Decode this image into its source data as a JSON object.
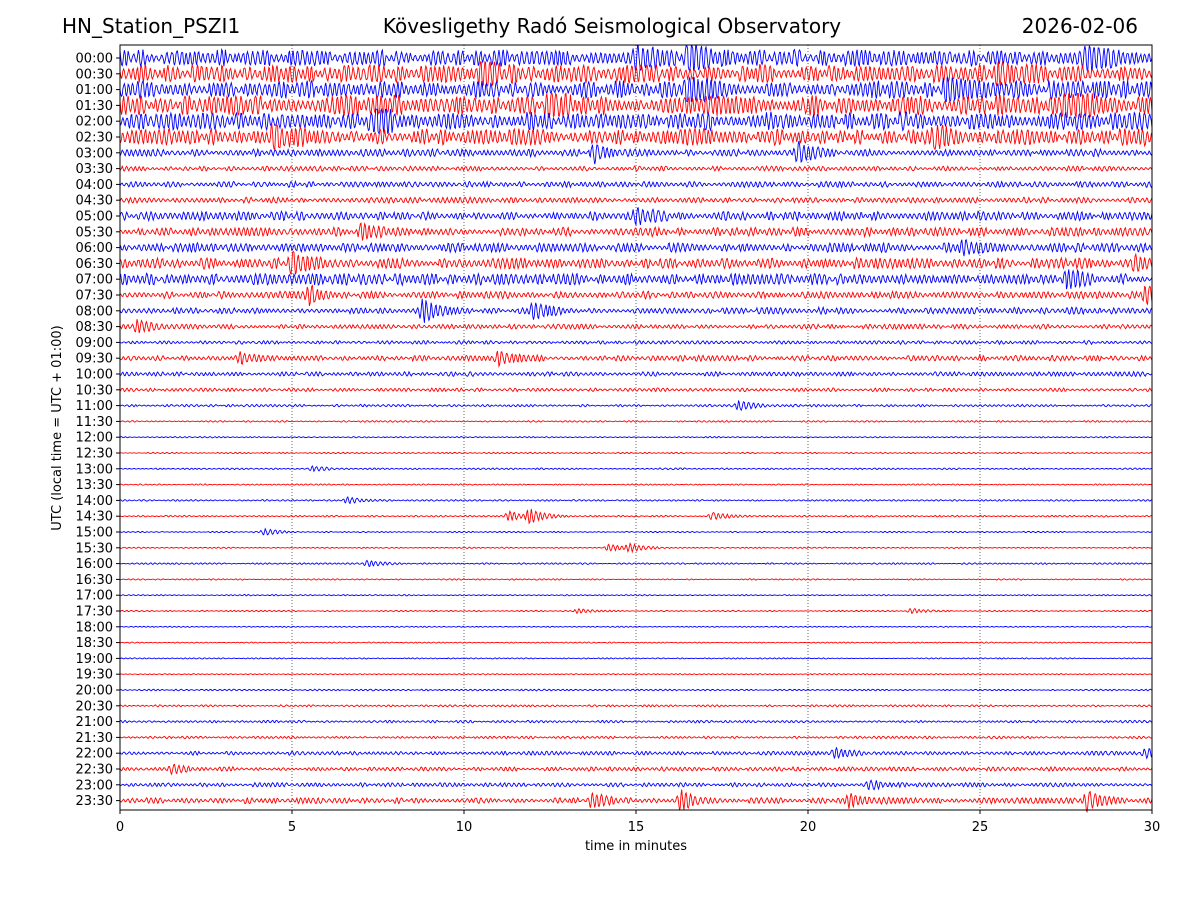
{
  "header": {
    "station": "HN_Station_PSZI1",
    "observatory": "Kövesligethy Radó Seismological Observatory",
    "date": "2026-02-06"
  },
  "chart_data": {
    "type": "line",
    "title": "Kövesligethy Radó Seismological Observatory",
    "xlabel": "time in minutes",
    "ylabel": "UTC (local time = UTC + 01:00)",
    "xlim": [
      0,
      30
    ],
    "x_ticks": [
      0,
      5,
      10,
      15,
      20,
      25,
      30
    ],
    "grid": "vertical dotted at 5-minute ticks",
    "colors": {
      "even_hour": "#0000ff",
      "half_hour": "#ff0000"
    },
    "rows": [
      {
        "label": "00:00",
        "amp": 1.0,
        "events": [
          {
            "t": 16.5,
            "a": 2.2
          },
          {
            "t": 28.1,
            "a": 1.8
          },
          {
            "t": 15.0,
            "a": 1.5
          }
        ]
      },
      {
        "label": "00:30",
        "amp": 1.1,
        "events": [
          {
            "t": 10.5,
            "a": 1.6
          },
          {
            "t": 25.5,
            "a": 1.5
          }
        ]
      },
      {
        "label": "01:00",
        "amp": 1.1,
        "events": [
          {
            "t": 16.5,
            "a": 1.8
          },
          {
            "t": 24.0,
            "a": 1.6
          }
        ]
      },
      {
        "label": "01:30",
        "amp": 1.25,
        "events": [
          {
            "t": 12.5,
            "a": 1.8
          },
          {
            "t": 27.5,
            "a": 1.7
          }
        ]
      },
      {
        "label": "02:00",
        "amp": 1.15,
        "events": [
          {
            "t": 7.5,
            "a": 1.6
          }
        ]
      },
      {
        "label": "02:30",
        "amp": 1.0,
        "events": [
          {
            "t": 4.5,
            "a": 1.6
          },
          {
            "t": 23.7,
            "a": 1.4
          }
        ]
      },
      {
        "label": "03:00",
        "amp": 0.45,
        "events": [
          {
            "t": 19.7,
            "a": 1.3
          },
          {
            "t": 13.8,
            "a": 1.0
          }
        ]
      },
      {
        "label": "03:30",
        "amp": 0.3,
        "events": []
      },
      {
        "label": "04:00",
        "amp": 0.35,
        "events": []
      },
      {
        "label": "04:30",
        "amp": 0.35,
        "events": []
      },
      {
        "label": "05:00",
        "amp": 0.55,
        "events": [
          {
            "t": 15.0,
            "a": 1.0
          }
        ]
      },
      {
        "label": "05:30",
        "amp": 0.55,
        "events": [
          {
            "t": 7.0,
            "a": 1.0
          }
        ]
      },
      {
        "label": "06:00",
        "amp": 0.55,
        "events": [
          {
            "t": 24.5,
            "a": 1.0
          }
        ]
      },
      {
        "label": "06:30",
        "amp": 0.65,
        "events": [
          {
            "t": 5.0,
            "a": 1.3
          },
          {
            "t": 29.5,
            "a": 1.0
          }
        ]
      },
      {
        "label": "07:00",
        "amp": 0.7,
        "events": [
          {
            "t": 27.5,
            "a": 1.0
          }
        ]
      },
      {
        "label": "07:30",
        "amp": 0.45,
        "events": [
          {
            "t": 5.5,
            "a": 1.0
          },
          {
            "t": 29.8,
            "a": 1.0
          }
        ]
      },
      {
        "label": "08:00",
        "amp": 0.4,
        "events": [
          {
            "t": 8.8,
            "a": 1.5
          },
          {
            "t": 12.0,
            "a": 1.0
          }
        ]
      },
      {
        "label": "08:30",
        "amp": 0.3,
        "events": [
          {
            "t": 0.5,
            "a": 0.8
          }
        ]
      },
      {
        "label": "09:00",
        "amp": 0.22,
        "events": []
      },
      {
        "label": "09:30",
        "amp": 0.35,
        "events": [
          {
            "t": 11.0,
            "a": 0.9
          },
          {
            "t": 3.5,
            "a": 0.6
          }
        ]
      },
      {
        "label": "10:00",
        "amp": 0.28,
        "events": []
      },
      {
        "label": "10:30",
        "amp": 0.22,
        "events": []
      },
      {
        "label": "11:00",
        "amp": 0.15,
        "events": [
          {
            "t": 18.0,
            "a": 0.6
          }
        ]
      },
      {
        "label": "11:30",
        "amp": 0.1,
        "events": []
      },
      {
        "label": "12:00",
        "amp": 0.08,
        "events": []
      },
      {
        "label": "12:30",
        "amp": 0.08,
        "events": []
      },
      {
        "label": "13:00",
        "amp": 0.1,
        "events": [
          {
            "t": 5.6,
            "a": 0.3
          }
        ]
      },
      {
        "label": "13:30",
        "amp": 0.08,
        "events": []
      },
      {
        "label": "14:00",
        "amp": 0.1,
        "events": [
          {
            "t": 6.6,
            "a": 0.4
          }
        ]
      },
      {
        "label": "14:30",
        "amp": 0.1,
        "events": [
          {
            "t": 11.9,
            "a": 0.9
          },
          {
            "t": 11.3,
            "a": 0.6
          },
          {
            "t": 17.2,
            "a": 0.5
          }
        ]
      },
      {
        "label": "15:00",
        "amp": 0.08,
        "events": [
          {
            "t": 4.2,
            "a": 0.4
          }
        ]
      },
      {
        "label": "15:30",
        "amp": 0.08,
        "events": [
          {
            "t": 14.2,
            "a": 0.5
          },
          {
            "t": 14.8,
            "a": 0.5
          }
        ]
      },
      {
        "label": "16:00",
        "amp": 0.1,
        "events": [
          {
            "t": 7.2,
            "a": 0.4
          }
        ]
      },
      {
        "label": "16:30",
        "amp": 0.08,
        "events": []
      },
      {
        "label": "17:00",
        "amp": 0.08,
        "events": []
      },
      {
        "label": "17:30",
        "amp": 0.08,
        "events": [
          {
            "t": 13.3,
            "a": 0.3
          },
          {
            "t": 23.0,
            "a": 0.3
          }
        ]
      },
      {
        "label": "18:00",
        "amp": 0.07,
        "events": []
      },
      {
        "label": "18:30",
        "amp": 0.07,
        "events": []
      },
      {
        "label": "19:00",
        "amp": 0.07,
        "events": []
      },
      {
        "label": "19:30",
        "amp": 0.07,
        "events": []
      },
      {
        "label": "20:00",
        "amp": 0.1,
        "events": []
      },
      {
        "label": "20:30",
        "amp": 0.12,
        "events": []
      },
      {
        "label": "21:00",
        "amp": 0.15,
        "events": []
      },
      {
        "label": "21:30",
        "amp": 0.15,
        "events": []
      },
      {
        "label": "22:00",
        "amp": 0.25,
        "events": [
          {
            "t": 20.8,
            "a": 0.6
          },
          {
            "t": 29.8,
            "a": 0.6
          }
        ]
      },
      {
        "label": "22:30",
        "amp": 0.25,
        "events": [
          {
            "t": 1.5,
            "a": 0.5
          }
        ]
      },
      {
        "label": "23:00",
        "amp": 0.25,
        "events": [
          {
            "t": 21.8,
            "a": 0.5
          }
        ]
      },
      {
        "label": "23:30",
        "amp": 0.35,
        "events": [
          {
            "t": 16.3,
            "a": 1.4
          },
          {
            "t": 28.1,
            "a": 1.3
          },
          {
            "t": 21.2,
            "a": 0.9
          },
          {
            "t": 13.7,
            "a": 0.9
          }
        ]
      }
    ]
  }
}
